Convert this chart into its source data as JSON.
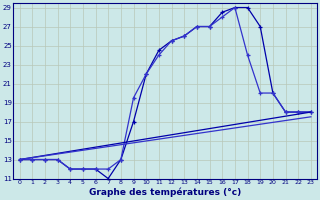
{
  "xlabel": "Graphe des températures (°c)",
  "background_color": "#cce8e8",
  "grid_color": "#b8c8b8",
  "line_color": "#0000aa",
  "line_color2": "#3333cc",
  "xlim": [
    -0.5,
    23.5
  ],
  "ylim": [
    11,
    29.5
  ],
  "xticks": [
    0,
    1,
    2,
    3,
    4,
    5,
    6,
    7,
    8,
    9,
    10,
    11,
    12,
    13,
    14,
    15,
    16,
    17,
    18,
    19,
    20,
    21,
    22,
    23
  ],
  "yticks": [
    11,
    13,
    15,
    17,
    19,
    21,
    23,
    25,
    27,
    29
  ],
  "series1_x": [
    0,
    1,
    2,
    3,
    4,
    5,
    6,
    7,
    8,
    9,
    10,
    11,
    12,
    13,
    14,
    15,
    16,
    17,
    18,
    19,
    20,
    21,
    22,
    23
  ],
  "series1_y": [
    13,
    13,
    13,
    13,
    12,
    12,
    12,
    11,
    13,
    17,
    22,
    24.5,
    25.5,
    26,
    27,
    27,
    28.5,
    29,
    29,
    27,
    20,
    18,
    18,
    18
  ],
  "series2_x": [
    0,
    1,
    2,
    3,
    4,
    5,
    6,
    7,
    8,
    9,
    10,
    11,
    12,
    13,
    14,
    15,
    16,
    17,
    18,
    19,
    20,
    21,
    22,
    23
  ],
  "series2_y": [
    13,
    13,
    13,
    13,
    12,
    12,
    12,
    12,
    13,
    19.5,
    22,
    24,
    25.5,
    26,
    27,
    27,
    28,
    29,
    24,
    20,
    20,
    18,
    18,
    18
  ],
  "series3_x": [
    0,
    23
  ],
  "series3_y": [
    13,
    18
  ],
  "series4_x": [
    0,
    23
  ],
  "series4_y": [
    13,
    17.5
  ]
}
